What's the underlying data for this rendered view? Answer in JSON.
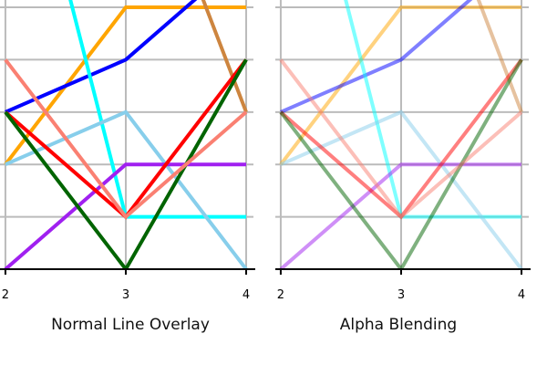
{
  "chart_data": [
    {
      "type": "line",
      "title": "Normal Line Overlay",
      "x": [
        2,
        3,
        4
      ],
      "xticks": [
        "2",
        "3",
        "4"
      ],
      "xlim": [
        1.955,
        4.015
      ],
      "ylim": [
        0,
        5.14
      ],
      "yticks_unlabeled": [
        0,
        1,
        2,
        3,
        4,
        5
      ],
      "grid": true,
      "alpha": 1,
      "series": [
        {
          "color": "#ffa500",
          "values": [
            2,
            5,
            5
          ]
        },
        {
          "color": "#0000ff",
          "values": [
            3,
            4,
            6
          ]
        },
        {
          "color": "#00ffff",
          "values": [
            10,
            1,
            1
          ]
        },
        {
          "color": "#cd853f",
          "values": [
            null,
            9,
            3
          ]
        },
        {
          "color": "#87ceeb",
          "values": [
            2,
            3,
            0
          ]
        },
        {
          "color": "#a020f0",
          "values": [
            0,
            2,
            2
          ]
        },
        {
          "color": "#ff0000",
          "values": [
            3,
            1,
            4
          ]
        },
        {
          "color": "#006400",
          "values": [
            3,
            0,
            4
          ]
        },
        {
          "color": "#fa8072",
          "values": [
            4,
            1,
            3
          ]
        }
      ]
    },
    {
      "type": "line",
      "title": "Alpha Blending",
      "x": [
        2,
        3,
        4
      ],
      "xticks": [
        "2",
        "3",
        "4"
      ],
      "xlim": [
        1.955,
        4.015
      ],
      "ylim": [
        0,
        5.14
      ],
      "yticks_unlabeled": [
        0,
        1,
        2,
        3,
        4,
        5
      ],
      "grid": true,
      "alpha": 0.5,
      "series": [
        {
          "color": "#ffa500",
          "values": [
            2,
            5,
            5
          ]
        },
        {
          "color": "#0000ff",
          "values": [
            3,
            4,
            6
          ]
        },
        {
          "color": "#00ffff",
          "values": [
            10,
            1,
            1
          ]
        },
        {
          "color": "#cd853f",
          "values": [
            null,
            9,
            3
          ]
        },
        {
          "color": "#87ceeb",
          "values": [
            2,
            3,
            0
          ]
        },
        {
          "color": "#a020f0",
          "values": [
            0,
            2,
            2
          ]
        },
        {
          "color": "#ff0000",
          "values": [
            3,
            1,
            4
          ]
        },
        {
          "color": "#006400",
          "values": [
            3,
            0,
            4
          ]
        },
        {
          "color": "#fa8072",
          "values": [
            4,
            1,
            3
          ]
        }
      ]
    }
  ]
}
